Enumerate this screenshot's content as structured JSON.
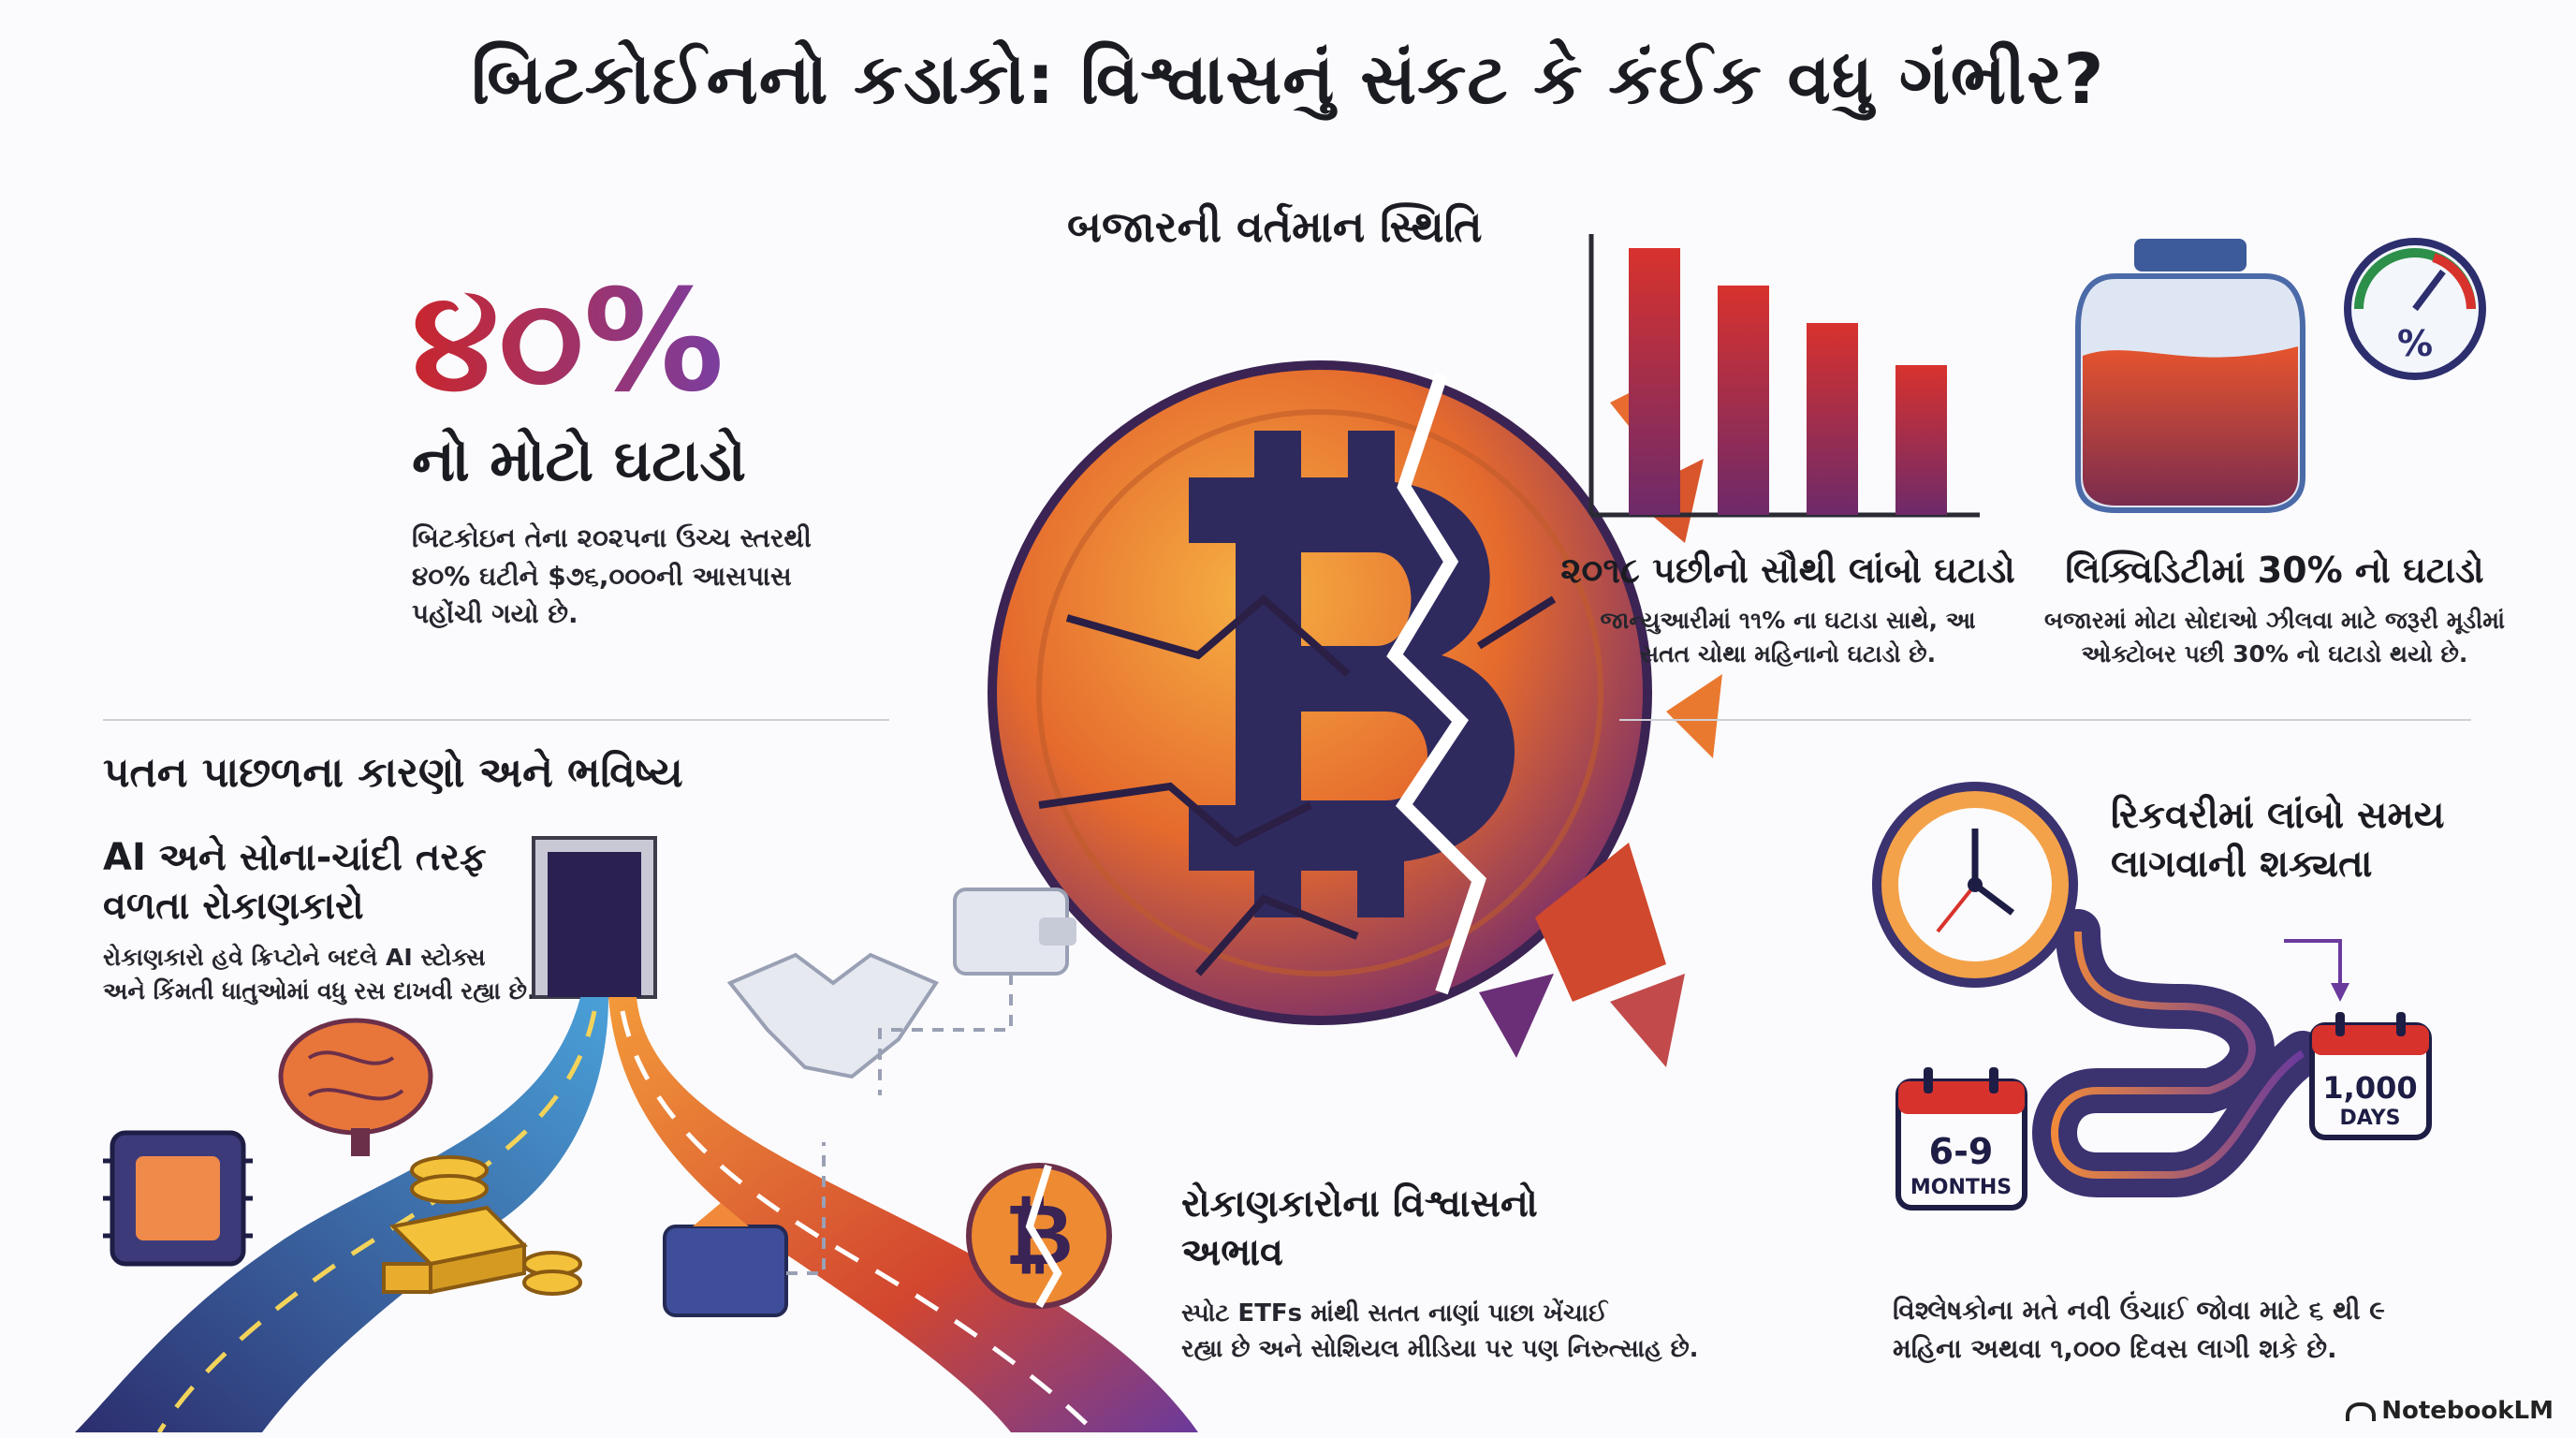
{
  "title": "બિટકોઈનનો કડાકો: વિશ્વાસનું સંકટ કે કંઈક વધુ ગંભીર?",
  "drop": {
    "percent": "૪૦%",
    "subtitle": "નો મોટો ઘટાડો",
    "desc_line1": "બિટકોઇન તેના ૨૦૨૫ના ઉચ્ચ સ્તરથી",
    "desc_line2": "૪૦% ઘટીને $૭૬,૦૦૦ની આસપાસ",
    "desc_line3": "પહોંચી ગયો છે."
  },
  "market": {
    "title": "બજારની વર્તમાન સ્થિતિ"
  },
  "longest_drop": {
    "title": "૨૦૧૮ પછીનો સૌથી લાંબો ઘટાડો",
    "desc_line1": "જાન્યુઆરીમાં ૧૧% ના ઘટાડા સાથે, આ",
    "desc_line2": "સતત ચોથા મહિનાનો ઘટાડો છે."
  },
  "liquidity": {
    "title": "લિક્વિડિટીમાં 30% નો ઘટાડો",
    "desc_line1": "બજારમાં મોટા સોદાઓ ઝીલવા માટે જરૂરી મૂડીમાં",
    "desc_line2": "ઓક્ટોબર પછી 30% નો ઘટાડો થયો છે.",
    "gauge_label": "%"
  },
  "causes": {
    "title": "પતન પાછળના કારણો અને ભવિષ્ય",
    "ai_title_line1": "AI અને સોના-ચાંદી તરફ",
    "ai_title_line2": "વળતા રોકાણકારો",
    "ai_desc_line1": "રોકાણકારો હવે ક્રિપ્ટોને બદલે AI સ્ટોક્સ",
    "ai_desc_line2": "અને કિંમતી ધાતુઓમાં વધુ રસ દાખવી રહ્યા છે."
  },
  "trust": {
    "title_line1": "રોકાણકારોના વિશ્વાસનો",
    "title_line2": "અભાવ",
    "desc_line1": "સ્પોટ ETFs માંથી સતત નાણાં પાછા ખેંચાઈ",
    "desc_line2": "રહ્યા છે અને સોશિયલ મીડિયા પર પણ નિરુત્સાહ છે."
  },
  "recovery": {
    "title_line1": "રિકવરીમાં લાંબો સમય",
    "title_line2": "લાગવાની શક્યતા",
    "cal1_top": "6-9",
    "cal1_bottom": "MONTHS",
    "cal2_top": "1,000",
    "cal2_bottom": "DAYS",
    "desc_line1": "વિશ્લેષકોના મતે નવી ઉંચાઈ જોવા માટે ૬ થી ૯",
    "desc_line2": "મહિના અથવા ૧,૦૦૦ દિવસ લાગી શકે છે."
  },
  "brand": "NotebookLM",
  "colors": {
    "accent_red": "#c9262d",
    "accent_purple": "#6a3a9c",
    "orange": "#f0862e",
    "navy": "#2c2e6e"
  },
  "icons": [
    "bitcoin-broken-icon",
    "bar-chart-icon",
    "liquidity-jar-icon",
    "gauge-icon",
    "clock-icon",
    "calendar-icon",
    "door-icon",
    "chip-icon",
    "brain-icon",
    "gold-bars-icon",
    "handshake-icon",
    "wallet-icon"
  ]
}
